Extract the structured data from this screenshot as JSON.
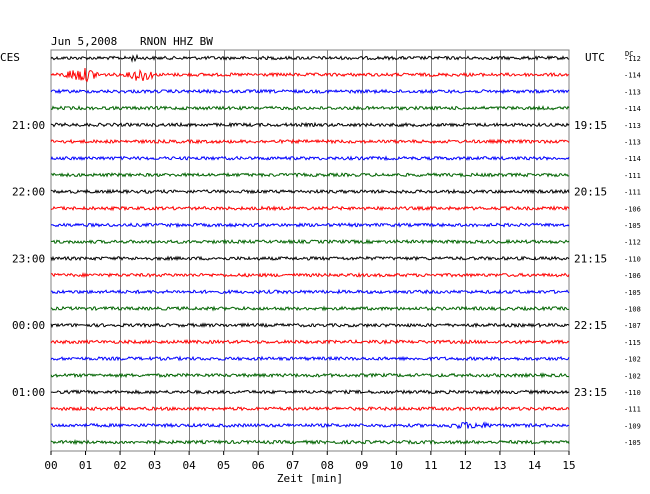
{
  "header": {
    "date": "Jun 5,2008",
    "station": "RNON HHZ BW",
    "left_timezone": "CES",
    "right_timezone": "UTC",
    "offset_label": "DC"
  },
  "chart_data": {
    "type": "line",
    "title": "Jun 5,2008   RNON HHZ BW",
    "xlabel": "Zeit [min]",
    "xlim": [
      0,
      15
    ],
    "x_ticks": [
      "00",
      "01",
      "02",
      "03",
      "04",
      "05",
      "06",
      "07",
      "08",
      "09",
      "10",
      "11",
      "12",
      "13",
      "14",
      "15"
    ],
    "grid": true,
    "trace_colors": [
      "#000000",
      "#ff0000",
      "#0000ff",
      "#006400"
    ],
    "left_time_labels": [
      "21:00",
      "22:00",
      "23:00",
      "00:00",
      "01:00"
    ],
    "right_time_labels": [
      "19:15",
      "20:15",
      "21:15",
      "22:15",
      "23:15"
    ],
    "time_label_trace_indices": [
      4,
      8,
      12,
      16,
      20
    ],
    "dc_offsets": [
      "-112",
      "-114",
      "-113",
      "-114",
      "-113",
      "-113",
      "-114",
      "-111",
      "-111",
      "-106",
      "-105",
      "-112",
      "-110",
      "-106",
      "-105",
      "-108",
      "-107",
      "-115",
      "-102",
      "-102",
      "-110",
      "-111",
      "-109",
      "-105"
    ],
    "events": [
      {
        "trace_index": 0,
        "x_start_min": 2.2,
        "x_end_min": 2.6,
        "amplitude": "small"
      },
      {
        "trace_index": 1,
        "x_start_min": 0.2,
        "x_end_min": 1.6,
        "amplitude": "medium"
      },
      {
        "trace_index": 1,
        "x_start_min": 2.1,
        "x_end_min": 3.1,
        "amplitude": "medium"
      },
      {
        "trace_index": 22,
        "x_start_min": 11.0,
        "x_end_min": 13.2,
        "amplitude": "small"
      }
    ]
  }
}
